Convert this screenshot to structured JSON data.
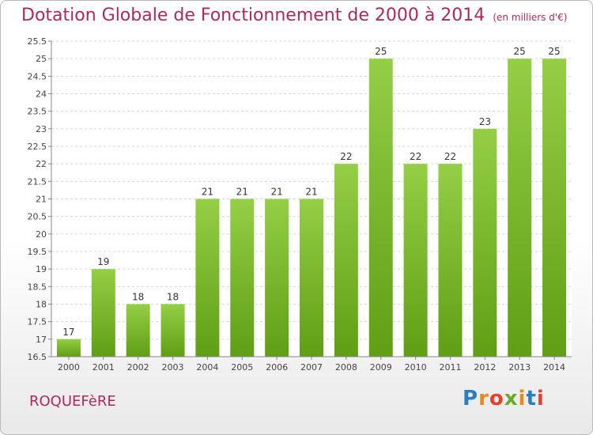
{
  "title": "Dotation Globale de Fonctionnement de 2000 à 2014",
  "unit_note": "(en milliers d'€)",
  "commune": "ROQUEFèRE",
  "logo": {
    "text": "Proxiti",
    "colors": [
      "#2a7fc1",
      "#e8891b",
      "#e8402c",
      "#6aab2a",
      "#e8891b",
      "#2a7fc1",
      "#e8402c"
    ]
  },
  "chart_data": {
    "type": "bar",
    "title": "Dotation Globale de Fonctionnement de 2000 à 2014",
    "subtitle": "(en milliers d'€)",
    "xlabel": "",
    "ylabel": "",
    "categories": [
      "2000",
      "2001",
      "2002",
      "2003",
      "2004",
      "2005",
      "2006",
      "2007",
      "2008",
      "2009",
      "2010",
      "2011",
      "2012",
      "2013",
      "2014"
    ],
    "values": [
      17,
      19,
      18,
      18,
      21,
      21,
      21,
      21,
      22,
      25,
      22,
      22,
      23,
      25,
      25
    ],
    "value_labels": [
      "17",
      "19",
      "18",
      "18",
      "21",
      "21",
      "21",
      "21",
      "22",
      "25",
      "22",
      "22",
      "23",
      "25",
      "25"
    ],
    "ylim": [
      16.5,
      25.5
    ],
    "yticks": [
      "16.5",
      "17",
      "17.5",
      "18",
      "18.5",
      "19",
      "19.5",
      "20",
      "20.5",
      "21",
      "21.5",
      "22",
      "22.5",
      "23",
      "23.5",
      "24",
      "24.5",
      "25",
      "25.5"
    ],
    "grid": true,
    "bar_color": "#7cba2e"
  }
}
